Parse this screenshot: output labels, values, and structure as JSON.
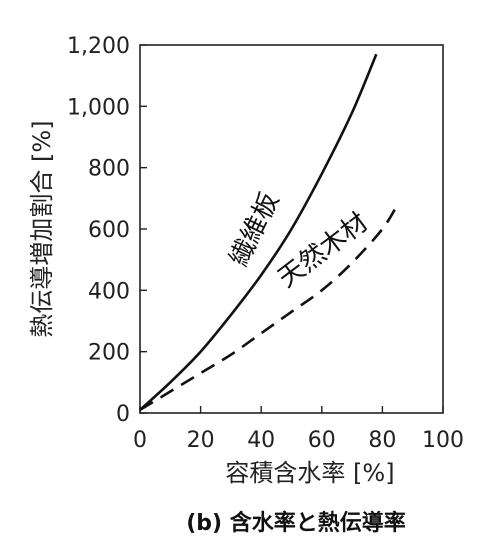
{
  "chart_data": {
    "type": "line",
    "title": "(b) 含水率と熱伝導率",
    "xlabel": "容積含水率 [%]",
    "ylabel": "熱伝導増加割合 [%]",
    "xlim": [
      0,
      100
    ],
    "ylim": [
      0,
      1200
    ],
    "x_ticks": [
      0,
      20,
      40,
      60,
      80,
      100
    ],
    "x_tick_labels": [
      "0",
      "20",
      "40",
      "60",
      "80",
      "100"
    ],
    "y_ticks": [
      0,
      200,
      400,
      600,
      800,
      1000,
      1200
    ],
    "y_tick_labels": [
      "0",
      "200",
      "400",
      "600",
      "800",
      "1,000",
      "1,200"
    ],
    "grid": false,
    "legend": "none",
    "series": [
      {
        "name": "繊維板",
        "style": "solid",
        "color": "#111111",
        "x": [
          0,
          10,
          20,
          30,
          40,
          50,
          60,
          70,
          78
        ],
        "y": [
          10,
          100,
          200,
          320,
          450,
          600,
          780,
          980,
          1170
        ]
      },
      {
        "name": "天然木材",
        "style": "dashed",
        "color": "#111111",
        "x": [
          0,
          10,
          20,
          30,
          40,
          50,
          60,
          70,
          80,
          85
        ],
        "y": [
          10,
          70,
          130,
          190,
          260,
          330,
          400,
          490,
          600,
          680
        ]
      }
    ]
  }
}
